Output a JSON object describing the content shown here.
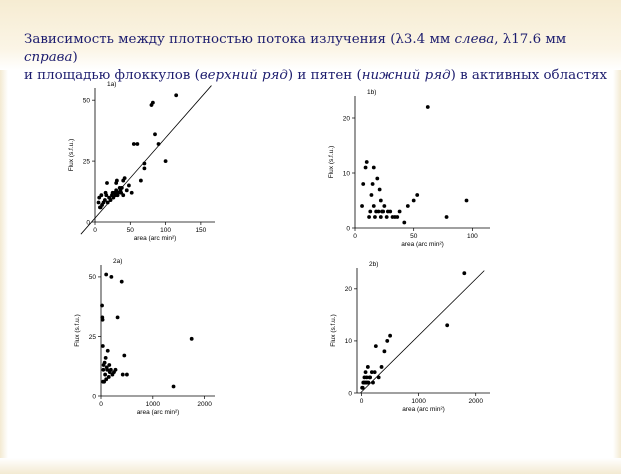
{
  "slide": {
    "title_line1_a": "Зависимость между плотностью потока излучения (λ3.4 мм ",
    "title_line1_b": "слева",
    "title_line1_c": ", λ17.6 мм ",
    "title_line1_d": "справа",
    "title_line1_e": ")",
    "title_line2_a": "и площадью флоккулов (",
    "title_line2_b": "верхний ряд",
    "title_line2_c": ") и пятен (",
    "title_line2_d": "нижний ряд",
    "title_line2_e": ") в активных областях"
  },
  "chart_data": [
    {
      "type": "scatter",
      "panel_label": "1a)",
      "xlabel": "area (arc min²)",
      "ylabel": "Flux (s.f.u.)",
      "xlim": [
        0,
        170
      ],
      "ylim": [
        0,
        55
      ],
      "xticks": [
        0,
        50,
        100,
        150
      ],
      "yticks": [
        0,
        25,
        50
      ],
      "fit_line": {
        "x": [
          -20,
          165
        ],
        "y": [
          -5,
          56
        ]
      },
      "points": [
        [
          5,
          8
        ],
        [
          6,
          10
        ],
        [
          7,
          6
        ],
        [
          8,
          6
        ],
        [
          9,
          11
        ],
        [
          10,
          7
        ],
        [
          12,
          8
        ],
        [
          14,
          9
        ],
        [
          15,
          12
        ],
        [
          16,
          11
        ],
        [
          17,
          16
        ],
        [
          18,
          8
        ],
        [
          20,
          10
        ],
        [
          22,
          9
        ],
        [
          24,
          11
        ],
        [
          25,
          12
        ],
        [
          26,
          10
        ],
        [
          28,
          12
        ],
        [
          29,
          11
        ],
        [
          30,
          13
        ],
        [
          30,
          16
        ],
        [
          31,
          17
        ],
        [
          32,
          11
        ],
        [
          33,
          12
        ],
        [
          35,
          14
        ],
        [
          36,
          13
        ],
        [
          37,
          12
        ],
        [
          38,
          14
        ],
        [
          40,
          11
        ],
        [
          40,
          17
        ],
        [
          42,
          18
        ],
        [
          45,
          13
        ],
        [
          48,
          15
        ],
        [
          52,
          12
        ],
        [
          55,
          32
        ],
        [
          60,
          32
        ],
        [
          65,
          17
        ],
        [
          70,
          22
        ],
        [
          70,
          24
        ],
        [
          80,
          48
        ],
        [
          82,
          49
        ],
        [
          85,
          36
        ],
        [
          90,
          32
        ],
        [
          100,
          25
        ],
        [
          115,
          52
        ]
      ]
    },
    {
      "type": "scatter",
      "panel_label": "1b)",
      "xlabel": "area (arc min²)",
      "ylabel": "Flux (s.f.u.)",
      "xlim": [
        0,
        115
      ],
      "ylim": [
        0,
        24
      ],
      "xticks": [
        0,
        50,
        100
      ],
      "yticks": [
        0,
        10,
        20
      ],
      "points": [
        [
          6,
          4
        ],
        [
          7,
          8
        ],
        [
          9,
          11
        ],
        [
          10,
          12
        ],
        [
          12,
          2
        ],
        [
          13,
          3
        ],
        [
          14,
          6
        ],
        [
          15,
          8
        ],
        [
          16,
          4
        ],
        [
          16,
          11
        ],
        [
          17,
          2
        ],
        [
          18,
          3
        ],
        [
          19,
          9
        ],
        [
          20,
          3
        ],
        [
          21,
          7
        ],
        [
          22,
          2
        ],
        [
          22,
          5
        ],
        [
          23,
          3
        ],
        [
          24,
          3
        ],
        [
          25,
          4
        ],
        [
          27,
          2
        ],
        [
          28,
          3
        ],
        [
          30,
          3
        ],
        [
          32,
          2
        ],
        [
          34,
          2
        ],
        [
          36,
          2
        ],
        [
          38,
          3
        ],
        [
          42,
          1
        ],
        [
          45,
          4
        ],
        [
          50,
          5
        ],
        [
          53,
          6
        ],
        [
          62,
          22
        ],
        [
          78,
          2
        ],
        [
          95,
          5
        ]
      ]
    },
    {
      "type": "scatter",
      "panel_label": "2a)",
      "xlabel": "area (arc min²)",
      "ylabel": "Flux (s.f.u.)",
      "xlim": [
        0,
        2200
      ],
      "ylim": [
        0,
        55
      ],
      "xticks": [
        0,
        1000,
        2000
      ],
      "yticks": [
        0,
        25,
        50
      ],
      "points": [
        [
          20,
          38
        ],
        [
          25,
          33
        ],
        [
          30,
          32
        ],
        [
          35,
          21
        ],
        [
          40,
          6
        ],
        [
          45,
          11
        ],
        [
          50,
          13
        ],
        [
          60,
          6
        ],
        [
          70,
          14
        ],
        [
          80,
          9
        ],
        [
          90,
          16
        ],
        [
          100,
          51
        ],
        [
          100,
          7
        ],
        [
          110,
          12
        ],
        [
          120,
          11
        ],
        [
          130,
          19
        ],
        [
          150,
          8
        ],
        [
          160,
          13
        ],
        [
          170,
          10
        ],
        [
          190,
          11
        ],
        [
          200,
          50
        ],
        [
          220,
          9
        ],
        [
          250,
          10
        ],
        [
          280,
          11
        ],
        [
          320,
          33
        ],
        [
          400,
          48
        ],
        [
          420,
          9
        ],
        [
          450,
          17
        ],
        [
          500,
          9
        ],
        [
          1400,
          4
        ],
        [
          1750,
          24
        ]
      ]
    },
    {
      "type": "scatter",
      "panel_label": "2b)",
      "xlabel": "area (arc min²)",
      "ylabel": "Flux (s.f.u.)",
      "xlim": [
        -80,
        2250
      ],
      "ylim": [
        0,
        24
      ],
      "xticks": [
        0,
        1000,
        2000
      ],
      "yticks": [
        0,
        10,
        20
      ],
      "fit_line": {
        "x": [
          -20,
          2150
        ],
        "y": [
          0,
          23.5
        ]
      },
      "points": [
        [
          10,
          1
        ],
        [
          20,
          1
        ],
        [
          30,
          2
        ],
        [
          40,
          2
        ],
        [
          50,
          3
        ],
        [
          60,
          2
        ],
        [
          70,
          4
        ],
        [
          80,
          2
        ],
        [
          90,
          3
        ],
        [
          100,
          2
        ],
        [
          110,
          5
        ],
        [
          120,
          2
        ],
        [
          140,
          3
        ],
        [
          150,
          3
        ],
        [
          180,
          4
        ],
        [
          200,
          2
        ],
        [
          230,
          4
        ],
        [
          250,
          9
        ],
        [
          300,
          3
        ],
        [
          350,
          5
        ],
        [
          400,
          8
        ],
        [
          450,
          10
        ],
        [
          500,
          11
        ],
        [
          1500,
          13
        ],
        [
          1800,
          23
        ]
      ]
    }
  ]
}
